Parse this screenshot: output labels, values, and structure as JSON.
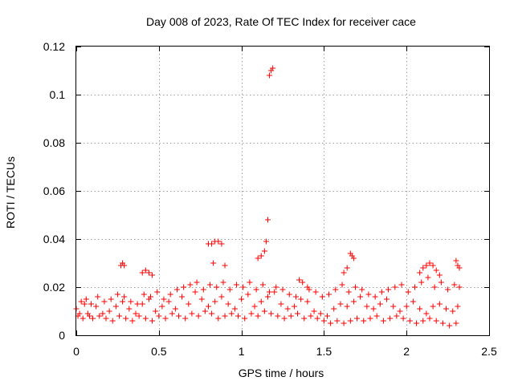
{
  "chart_data": {
    "type": "scatter",
    "title": "Day 008 of 2023, Rate Of TEC Index for receiver cace",
    "xlabel": "GPS time / hours",
    "ylabel": "ROTI / TECUs",
    "xlim": [
      0,
      2.5
    ],
    "ylim": [
      0,
      0.12
    ],
    "x_ticks": [
      0,
      0.5,
      1,
      1.5,
      2,
      2.5
    ],
    "x_tick_labels": [
      "0",
      "0.5",
      "1",
      "1.5",
      "2",
      "2.5"
    ],
    "y_ticks": [
      0,
      0.02,
      0.04,
      0.06,
      0.08,
      0.1,
      0.12
    ],
    "y_tick_labels": [
      "0",
      "0.02",
      "0.04",
      "0.06",
      "0.08",
      "0.1",
      "0.12"
    ],
    "grid": true,
    "marker": "plus",
    "color": "#ff0000",
    "series": [
      {
        "name": "ROTI",
        "x": [
          0.0,
          0.02,
          0.05,
          0.08,
          0.12,
          0.16,
          0.2,
          0.24,
          0.28,
          0.32,
          0.36,
          0.4,
          0.44,
          0.48,
          0.52,
          0.56,
          0.6,
          0.64,
          0.68,
          0.72,
          0.76,
          0.8,
          0.84,
          0.88,
          0.92,
          0.96,
          1.0,
          1.04,
          1.08,
          1.12,
          1.16,
          1.2,
          1.24,
          1.28,
          1.32,
          1.36,
          1.4,
          1.44,
          1.48,
          1.52,
          1.56,
          1.6,
          1.64,
          1.68,
          1.72,
          1.76,
          1.8,
          1.84,
          1.88,
          1.92,
          1.96,
          2.0,
          2.04,
          2.08,
          2.12,
          2.16,
          2.2,
          2.24,
          2.28,
          2.31,
          0.01,
          0.04,
          0.07,
          0.1,
          0.14,
          0.18,
          0.22,
          0.26,
          0.3,
          0.34,
          0.38,
          0.42,
          0.46,
          0.5,
          0.54,
          0.58,
          0.62,
          0.66,
          0.7,
          0.74,
          0.78,
          0.82,
          0.86,
          0.9,
          0.94,
          0.98,
          1.02,
          1.06,
          1.1,
          1.14,
          1.18,
          1.22,
          1.26,
          1.3,
          1.34,
          1.38,
          1.42,
          1.46,
          1.5,
          1.54,
          1.58,
          1.62,
          1.66,
          1.7,
          1.74,
          1.78,
          1.82,
          1.86,
          1.9,
          1.94,
          1.98,
          2.02,
          2.06,
          2.1,
          2.14,
          2.18,
          2.22,
          2.26,
          2.3,
          0.03,
          0.06,
          0.09,
          0.13,
          0.17,
          0.21,
          0.25,
          0.29,
          0.33,
          0.37,
          0.41,
          0.45,
          0.49,
          0.53,
          0.57,
          0.61,
          0.65,
          0.69,
          0.73,
          0.77,
          0.81,
          0.85,
          0.89,
          0.93,
          0.97,
          1.01,
          1.05,
          1.09,
          1.13,
          1.17,
          1.21,
          1.25,
          1.29,
          1.33,
          1.37,
          1.41,
          1.45,
          1.49,
          1.53,
          1.57,
          1.61,
          1.65,
          1.69,
          1.73,
          1.77,
          1.81,
          1.85,
          1.89,
          1.93,
          1.97,
          2.01,
          2.05,
          2.09,
          2.13,
          2.17,
          2.21,
          2.25,
          2.29,
          2.32,
          0.27,
          0.28,
          0.29,
          0.4,
          0.42,
          0.44,
          0.46,
          0.8,
          0.82,
          0.84,
          0.86,
          0.88,
          0.83,
          0.9,
          1.1,
          1.12,
          1.14,
          1.15,
          1.16,
          1.17,
          1.18,
          1.19,
          1.35,
          1.4,
          1.62,
          1.64,
          1.66,
          1.67,
          1.68,
          2.08,
          2.1,
          2.12,
          2.14,
          2.16,
          2.18,
          2.2,
          2.3,
          2.31,
          2.32
        ],
        "y": [
          0.011,
          0.009,
          0.013,
          0.008,
          0.012,
          0.009,
          0.01,
          0.012,
          0.014,
          0.011,
          0.009,
          0.013,
          0.015,
          0.01,
          0.012,
          0.014,
          0.011,
          0.016,
          0.013,
          0.018,
          0.015,
          0.012,
          0.014,
          0.016,
          0.013,
          0.011,
          0.015,
          0.017,
          0.012,
          0.014,
          0.016,
          0.018,
          0.013,
          0.011,
          0.012,
          0.015,
          0.014,
          0.01,
          0.009,
          0.008,
          0.011,
          0.013,
          0.012,
          0.014,
          0.016,
          0.012,
          0.011,
          0.013,
          0.015,
          0.012,
          0.01,
          0.012,
          0.014,
          0.011,
          0.009,
          0.012,
          0.013,
          0.011,
          0.01,
          0.012,
          0.008,
          0.007,
          0.009,
          0.007,
          0.008,
          0.007,
          0.006,
          0.008,
          0.007,
          0.006,
          0.008,
          0.007,
          0.006,
          0.008,
          0.007,
          0.009,
          0.008,
          0.007,
          0.009,
          0.008,
          0.01,
          0.009,
          0.007,
          0.008,
          0.009,
          0.008,
          0.007,
          0.009,
          0.008,
          0.01,
          0.009,
          0.008,
          0.007,
          0.008,
          0.009,
          0.007,
          0.008,
          0.007,
          0.006,
          0.005,
          0.006,
          0.005,
          0.006,
          0.007,
          0.006,
          0.007,
          0.008,
          0.006,
          0.007,
          0.008,
          0.007,
          0.006,
          0.005,
          0.006,
          0.007,
          0.006,
          0.005,
          0.004,
          0.005,
          0.014,
          0.015,
          0.013,
          0.016,
          0.014,
          0.015,
          0.017,
          0.016,
          0.014,
          0.013,
          0.017,
          0.016,
          0.018,
          0.015,
          0.017,
          0.019,
          0.02,
          0.021,
          0.022,
          0.019,
          0.021,
          0.02,
          0.022,
          0.019,
          0.021,
          0.02,
          0.022,
          0.019,
          0.021,
          0.018,
          0.02,
          0.019,
          0.017,
          0.016,
          0.022,
          0.019,
          0.018,
          0.016,
          0.017,
          0.019,
          0.021,
          0.018,
          0.02,
          0.019,
          0.017,
          0.016,
          0.018,
          0.019,
          0.02,
          0.021,
          0.018,
          0.02,
          0.022,
          0.024,
          0.02,
          0.022,
          0.019,
          0.021,
          0.02,
          0.029,
          0.03,
          0.029,
          0.026,
          0.027,
          0.026,
          0.025,
          0.038,
          0.038,
          0.039,
          0.039,
          0.038,
          0.03,
          0.029,
          0.032,
          0.033,
          0.035,
          0.039,
          0.048,
          0.108,
          0.11,
          0.111,
          0.023,
          0.02,
          0.026,
          0.028,
          0.034,
          0.033,
          0.032,
          0.026,
          0.028,
          0.029,
          0.03,
          0.029,
          0.027,
          0.025,
          0.031,
          0.029,
          0.028
        ]
      }
    ]
  }
}
